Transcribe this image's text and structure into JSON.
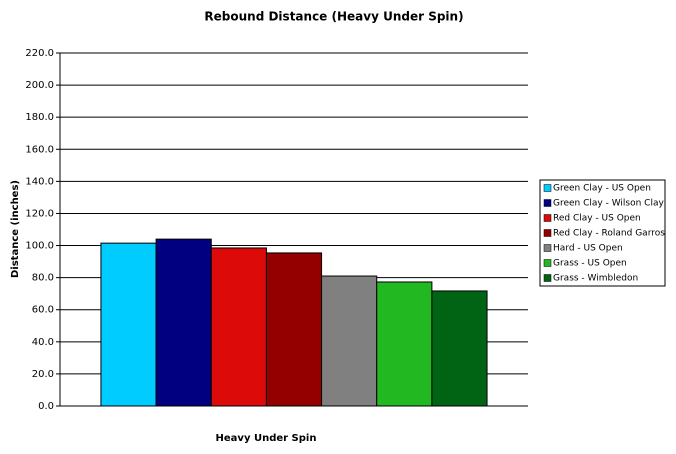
{
  "chart_data": {
    "type": "bar",
    "title": "Rebound Distance (Heavy Under Spin)",
    "y_label": "Distance (inches)",
    "categories": [
      "Heavy Under Spin"
    ],
    "series": [
      {
        "name": "Green Clay - US Open",
        "color": "#00ccff",
        "values": [
          101.5
        ]
      },
      {
        "name": "Green Clay - Wilson Clay",
        "color": "#000080",
        "values": [
          104
        ]
      },
      {
        "name": "Red Clay - US Open",
        "color": "#dd0a0a",
        "values": [
          98.5
        ]
      },
      {
        "name": "Red Clay - Roland Garros",
        "color": "#940000",
        "values": [
          95.4
        ]
      },
      {
        "name": "Hard - US Open",
        "color": "#808080",
        "values": [
          81
        ]
      },
      {
        "name": "Grass - US Open",
        "color": "#22b822",
        "values": [
          77.3
        ]
      },
      {
        "name": "Grass - Wimbledon",
        "color": "#006414",
        "values": [
          71.7
        ]
      }
    ],
    "ylim": [
      0,
      220
    ],
    "yticks": [
      {
        "value": 0,
        "label": "0.0"
      },
      {
        "value": 20,
        "label": "20.0"
      },
      {
        "value": 40,
        "label": "40.0"
      },
      {
        "value": 60,
        "label": "60.0"
      },
      {
        "value": 80,
        "label": "80.0"
      },
      {
        "value": 100,
        "label": "100.0"
      },
      {
        "value": 120,
        "label": "120.0"
      },
      {
        "value": 140,
        "label": "140.0"
      },
      {
        "value": 160,
        "label": "160.0"
      },
      {
        "value": 180,
        "label": "180.0"
      },
      {
        "value": 200,
        "label": "200.0"
      },
      {
        "value": 220,
        "label": "220.0"
      }
    ],
    "grid": true,
    "legend": "right"
  }
}
